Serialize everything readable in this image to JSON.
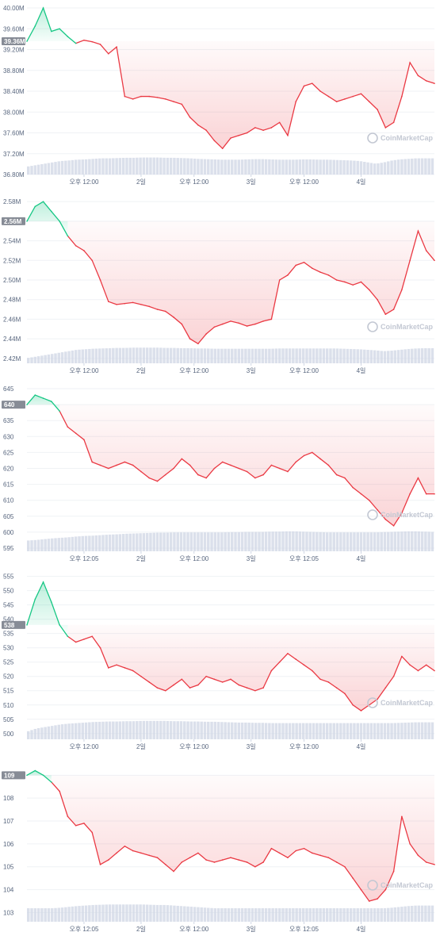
{
  "watermark": "CoinMarketCap",
  "colors": {
    "up": "#16c784",
    "down": "#ea3943",
    "badge": "#878c96",
    "tick": "#58667e",
    "volume": "#cfd6e4",
    "grid": "#eff2f5"
  },
  "chart_data": [
    {
      "type": "line",
      "y_tick_labels": [
        "40.00M",
        "39.60M",
        "39.20M",
        "38.80M",
        "38.40M",
        "38.00M",
        "37.60M",
        "37.20M",
        "36.80M"
      ],
      "x_tick_labels": [
        "오후 12:00",
        "2일",
        "오후 12:00",
        "3일",
        "오후 12:00",
        "4일"
      ],
      "current_label": "39.36M",
      "ylim": [
        36.8,
        40.0
      ],
      "baseline": 39.36,
      "series": [
        {
          "values": [
            39.36,
            39.65,
            40.0,
            39.55,
            39.6,
            39.45,
            39.32,
            39.38,
            39.35,
            39.3,
            39.12,
            39.25,
            38.3,
            38.25,
            38.3,
            38.3,
            38.28,
            38.25,
            38.2,
            38.15,
            37.9,
            37.75,
            37.65,
            37.45,
            37.3,
            37.5,
            37.55,
            37.6,
            37.7,
            37.65,
            37.7,
            37.8,
            37.55,
            38.2,
            38.5,
            38.55,
            38.4,
            38.3,
            38.2,
            38.25,
            38.3,
            38.35,
            38.2,
            38.05,
            37.7,
            37.8,
            38.3,
            38.95,
            38.7,
            38.6,
            38.55
          ]
        }
      ],
      "volume": [
        0.3,
        0.35,
        0.4,
        0.45,
        0.5,
        0.52,
        0.55,
        0.56,
        0.58,
        0.6,
        0.6,
        0.61,
        0.62,
        0.62,
        0.63,
        0.63,
        0.63,
        0.62,
        0.62,
        0.61,
        0.6,
        0.58,
        0.57,
        0.56,
        0.55,
        0.55,
        0.55,
        0.56,
        0.57,
        0.57,
        0.56,
        0.55,
        0.55,
        0.55,
        0.56,
        0.56,
        0.55,
        0.55,
        0.54,
        0.53,
        0.52,
        0.5,
        0.45,
        0.4,
        0.45,
        0.52,
        0.56,
        0.58,
        0.6,
        0.6,
        0.6
      ]
    },
    {
      "type": "line",
      "y_tick_labels": [
        "2.58M",
        "2.56M",
        "2.54M",
        "2.52M",
        "2.50M",
        "2.48M",
        "2.46M",
        "2.44M",
        "2.42M"
      ],
      "x_tick_labels": [
        "오후 12:00",
        "2일",
        "오후 12:00",
        "3일",
        "오후 12:00",
        "4일"
      ],
      "current_label": "2.56M",
      "ylim": [
        2.415,
        2.585
      ],
      "baseline": 2.56,
      "series": [
        {
          "values": [
            2.56,
            2.575,
            2.58,
            2.57,
            2.56,
            2.545,
            2.535,
            2.53,
            2.52,
            2.5,
            2.478,
            2.475,
            2.476,
            2.477,
            2.475,
            2.473,
            2.47,
            2.468,
            2.462,
            2.455,
            2.44,
            2.435,
            2.445,
            2.452,
            2.455,
            2.458,
            2.456,
            2.453,
            2.455,
            2.458,
            2.46,
            2.5,
            2.505,
            2.515,
            2.518,
            2.512,
            2.508,
            2.505,
            2.5,
            2.498,
            2.495,
            2.498,
            2.49,
            2.48,
            2.465,
            2.47,
            2.49,
            2.52,
            2.55,
            2.53,
            2.52
          ]
        }
      ],
      "volume": [
        0.2,
        0.25,
        0.3,
        0.35,
        0.4,
        0.45,
        0.5,
        0.52,
        0.54,
        0.55,
        0.56,
        0.57,
        0.57,
        0.58,
        0.58,
        0.58,
        0.58,
        0.57,
        0.57,
        0.56,
        0.56,
        0.55,
        0.55,
        0.54,
        0.54,
        0.54,
        0.54,
        0.54,
        0.54,
        0.54,
        0.54,
        0.55,
        0.55,
        0.55,
        0.55,
        0.55,
        0.55,
        0.55,
        0.55,
        0.54,
        0.53,
        0.52,
        0.5,
        0.48,
        0.45,
        0.47,
        0.5,
        0.53,
        0.55,
        0.56,
        0.56
      ]
    },
    {
      "type": "line",
      "y_tick_labels": [
        "645",
        "640",
        "635",
        "630",
        "625",
        "620",
        "615",
        "610",
        "605",
        "600",
        "595"
      ],
      "x_tick_labels": [
        "오후 12:05",
        "2일",
        "오후 12:00",
        "3일",
        "오후 12:05",
        "4일"
      ],
      "current_label": "640",
      "ylim": [
        594,
        646
      ],
      "baseline": 640,
      "series": [
        {
          "values": [
            640,
            643,
            642,
            641,
            638,
            633,
            631,
            629,
            622,
            621,
            620,
            621,
            622,
            621,
            619,
            617,
            616,
            618,
            620,
            623,
            621,
            618,
            617,
            620,
            622,
            621,
            620,
            619,
            617,
            618,
            621,
            620,
            619,
            622,
            624,
            625,
            623,
            621,
            618,
            617,
            614,
            612,
            610,
            607,
            604,
            602,
            606,
            612,
            617,
            612,
            612
          ]
        }
      ],
      "volume": [
        0.4,
        0.42,
        0.45,
        0.48,
        0.5,
        0.52,
        0.55,
        0.57,
        0.58,
        0.6,
        0.62,
        0.63,
        0.65,
        0.66,
        0.67,
        0.68,
        0.69,
        0.69,
        0.7,
        0.7,
        0.7,
        0.7,
        0.7,
        0.7,
        0.7,
        0.71,
        0.71,
        0.72,
        0.72,
        0.72,
        0.73,
        0.73,
        0.74,
        0.74,
        0.73,
        0.72,
        0.71,
        0.7,
        0.7,
        0.7,
        0.7,
        0.7,
        0.7,
        0.7,
        0.71,
        0.72,
        0.73,
        0.74,
        0.74,
        0.73,
        0.72
      ]
    },
    {
      "type": "line",
      "y_tick_labels": [
        "555",
        "550",
        "545",
        "540",
        "535",
        "530",
        "525",
        "520",
        "515",
        "510",
        "505",
        "500"
      ],
      "x_tick_labels": [
        "오후 12:00",
        "2일",
        "오후 12:00",
        "3일",
        "오후 12:00",
        "4일"
      ],
      "current_label": "538",
      "ylim": [
        498,
        556
      ],
      "baseline": 538,
      "series": [
        {
          "values": [
            538,
            547,
            553,
            546,
            538,
            534,
            532,
            533,
            534,
            530,
            523,
            524,
            523,
            522,
            520,
            518,
            516,
            515,
            517,
            519,
            516,
            517,
            520,
            519,
            518,
            519,
            517,
            516,
            515,
            516,
            522,
            525,
            528,
            526,
            524,
            522,
            519,
            518,
            516,
            514,
            510,
            508,
            510,
            512,
            516,
            520,
            527,
            524,
            522,
            524,
            522
          ]
        }
      ],
      "volume": [
        0.3,
        0.4,
        0.45,
        0.5,
        0.55,
        0.58,
        0.6,
        0.62,
        0.64,
        0.65,
        0.66,
        0.66,
        0.67,
        0.67,
        0.68,
        0.68,
        0.68,
        0.68,
        0.67,
        0.67,
        0.66,
        0.66,
        0.65,
        0.65,
        0.64,
        0.63,
        0.62,
        0.62,
        0.61,
        0.61,
        0.6,
        0.6,
        0.6,
        0.6,
        0.6,
        0.6,
        0.6,
        0.6,
        0.6,
        0.6,
        0.6,
        0.6,
        0.6,
        0.6,
        0.6,
        0.6,
        0.61,
        0.62,
        0.63,
        0.63,
        0.63
      ]
    },
    {
      "type": "line",
      "y_tick_labels": [
        "109",
        "108",
        "107",
        "106",
        "105",
        "104",
        "103"
      ],
      "x_tick_labels": [
        "오후 12:05",
        "2일",
        "오후 12:00",
        "3일",
        "오후 12:05",
        "4일"
      ],
      "current_label": "109",
      "ylim": [
        102.6,
        109.6
      ],
      "baseline": 109,
      "series": [
        {
          "values": [
            109,
            109.2,
            109,
            108.7,
            108.3,
            107.2,
            106.8,
            106.9,
            106.5,
            105.1,
            105.3,
            105.6,
            105.9,
            105.7,
            105.6,
            105.5,
            105.4,
            105.1,
            104.8,
            105.2,
            105.4,
            105.6,
            105.3,
            105.2,
            105.3,
            105.4,
            105.3,
            105.2,
            105.0,
            105.2,
            105.8,
            105.6,
            105.4,
            105.7,
            105.8,
            105.6,
            105.5,
            105.4,
            105.2,
            105.0,
            104.5,
            104.0,
            103.5,
            103.6,
            104.0,
            104.8,
            107.2,
            106.0,
            105.5,
            105.2,
            105.1
          ]
        }
      ],
      "volume": [
        0.5,
        0.5,
        0.5,
        0.5,
        0.52,
        0.55,
        0.58,
        0.6,
        0.62,
        0.63,
        0.64,
        0.64,
        0.64,
        0.64,
        0.64,
        0.63,
        0.62,
        0.62,
        0.6,
        0.58,
        0.56,
        0.54,
        0.52,
        0.5,
        0.5,
        0.5,
        0.5,
        0.5,
        0.5,
        0.5,
        0.5,
        0.5,
        0.5,
        0.5,
        0.5,
        0.5,
        0.5,
        0.5,
        0.5,
        0.5,
        0.5,
        0.5,
        0.5,
        0.5,
        0.5,
        0.52,
        0.55,
        0.58,
        0.6,
        0.6,
        0.6
      ]
    }
  ]
}
